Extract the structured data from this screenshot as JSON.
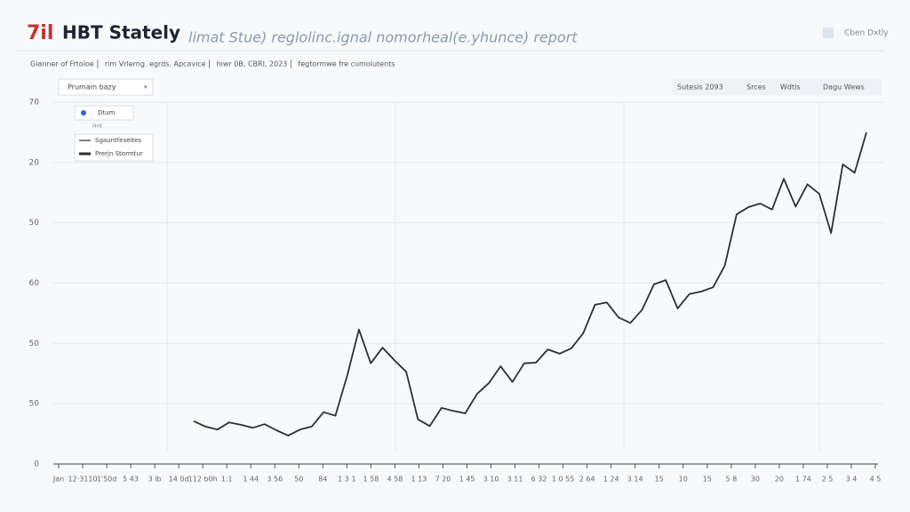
{
  "header": {
    "logo": "7il",
    "title": "HBT Stately",
    "subtitle": "limat Stue) reglolinc.ignal nomorheal(e.yhunce) report",
    "corner_link": "Cben Dxtly"
  },
  "breadcrumb": [
    "Gianner of Frtoloe",
    "rim Vrlerng. egrds. Apcavice",
    "hiwr 0B, CBRI, 2023",
    "fegtormwe fre cumolutents"
  ],
  "toolbar": {
    "dropdown": "Prumain bazy",
    "buttons": [
      "Sutesis 2093",
      "Srces",
      "Wdtls",
      "Dagu Wews"
    ]
  },
  "legend_panel": {
    "radio": "Dtum",
    "radio_note": "Hrd",
    "line_item": "Sgauntfeseites"
  },
  "chart_data": {
    "type": "line",
    "y_labels": [
      "70",
      "20",
      "50",
      "60",
      "50",
      "50",
      "0"
    ],
    "x_labels": [
      "Jan",
      "12·3110",
      "1'50d",
      "5 43",
      "3 lb",
      "14 0d",
      "112 b0h",
      "1:1",
      "1 44",
      "3 56",
      "50",
      "84",
      "1 3 1",
      "1 58",
      "4 58",
      "1 13",
      "7 20",
      "1 45",
      "3 10",
      "3 11",
      "6 32",
      "1 0 55",
      "2 64",
      "1 24",
      "3 14",
      "15",
      "10",
      "15",
      "5 8",
      "30",
      "20",
      "1 74",
      "2 5",
      "3 4",
      "4 5"
    ],
    "ylim": [
      0,
      60
    ],
    "series": [
      {
        "name": "Prerjn Stormtur",
        "color": "#2b2f36",
        "values": [
          7.1,
          6.2,
          5.7,
          6.9,
          6.5,
          6.0,
          6.6,
          5.6,
          4.7,
          5.7,
          6.2,
          8.6,
          8.0,
          14.6,
          22.3,
          16.7,
          19.3,
          17.2,
          15.3,
          7.4,
          6.3,
          9.3,
          8.8,
          8.4,
          11.6,
          13.4,
          16.2,
          13.6,
          16.7,
          16.8,
          19.0,
          18.3,
          19.2,
          21.7,
          26.4,
          26.8,
          24.3,
          23.4,
          25.6,
          29.8,
          30.5,
          25.8,
          28.2,
          28.6,
          29.3,
          32.9,
          41.4,
          42.6,
          43.2,
          42.2,
          47.3,
          42.7,
          46.4,
          44.8,
          38.3,
          49.7,
          48.3,
          55.0
        ]
      }
    ]
  }
}
